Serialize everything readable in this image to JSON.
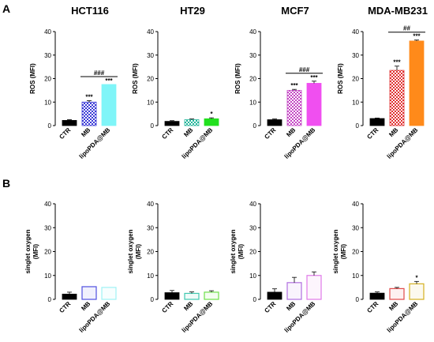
{
  "figure": {
    "panel_a_label": "A",
    "panel_b_label": "B",
    "categories": [
      "CTR",
      "MB",
      "lipoPDA@MB"
    ]
  },
  "chart_data": [
    {
      "type": "bar",
      "panel": "A",
      "title": "HCT116",
      "ylabel": "ROS (MFI)",
      "ylim": [
        0,
        40
      ],
      "yticks": [
        0,
        10,
        20,
        30,
        40
      ],
      "categories": [
        "CTR",
        "MB",
        "lipoPDA@MB"
      ],
      "values": [
        2.2,
        10.0,
        17.5
      ],
      "errors": [
        0.3,
        0.6,
        0.0
      ],
      "colors": [
        "#000000",
        "#3a3ad6",
        "#7ff5f8"
      ],
      "patterns": [
        "solid",
        "checker",
        "solid"
      ],
      "stars": [
        "",
        "***",
        "***"
      ],
      "bracket": {
        "from": 1,
        "to": 2,
        "label": "###"
      }
    },
    {
      "type": "bar",
      "panel": "A",
      "title": "HT29",
      "ylabel": "ROS (MFI)",
      "ylim": [
        0,
        40
      ],
      "yticks": [
        0,
        10,
        20,
        30,
        40
      ],
      "categories": [
        "CTR",
        "MB",
        "lipoPDA@MB"
      ],
      "values": [
        1.8,
        2.5,
        2.9
      ],
      "errors": [
        0.3,
        0.3,
        0.4
      ],
      "colors": [
        "#000000",
        "#23b59a",
        "#22e01e"
      ],
      "patterns": [
        "solid",
        "checker",
        "solid"
      ],
      "stars": [
        "",
        "",
        "*"
      ],
      "bracket": null
    },
    {
      "type": "bar",
      "panel": "A",
      "title": "MCF7",
      "ylabel": "ROS (MFI)",
      "ylim": [
        0,
        40
      ],
      "yticks": [
        0,
        10,
        20,
        30,
        40
      ],
      "categories": [
        "CTR",
        "MB",
        "lipoPDA@MB"
      ],
      "values": [
        2.5,
        15.0,
        18.0
      ],
      "errors": [
        0.3,
        0.4,
        0.9
      ],
      "colors": [
        "#000000",
        "#c447c4",
        "#f04ff0"
      ],
      "patterns": [
        "solid",
        "checker",
        "solid"
      ],
      "stars": [
        "",
        "***",
        "***"
      ],
      "bracket": {
        "from": 1,
        "to": 2,
        "label": "###"
      }
    },
    {
      "type": "bar",
      "panel": "A",
      "title": "MDA-MB231",
      "ylabel": "ROS (MFI)",
      "ylim": [
        0,
        40
      ],
      "yticks": [
        0,
        10,
        20,
        30,
        40
      ],
      "categories": [
        "CTR",
        "MB",
        "lipoPDA@MB"
      ],
      "values": [
        3.0,
        23.5,
        36.0
      ],
      "errors": [
        0.2,
        1.8,
        0.4
      ],
      "colors": [
        "#000000",
        "#e03030",
        "#ff8a1a"
      ],
      "patterns": [
        "solid",
        "checker",
        "solid"
      ],
      "stars": [
        "",
        "***",
        "***"
      ],
      "bracket": {
        "from": 1,
        "to": 2,
        "label": "##"
      }
    },
    {
      "type": "bar",
      "panel": "B",
      "title": "",
      "ylabel": "singlet oxygen (MFI)",
      "ylim": [
        0,
        40
      ],
      "yticks": [
        0,
        10,
        20,
        30,
        40
      ],
      "categories": [
        "CTR",
        "MB",
        "lipoPDA@MB"
      ],
      "values": [
        2.2,
        5.3,
        5.0
      ],
      "errors": [
        0.8,
        0.0,
        0.0
      ],
      "colors": [
        "#000000",
        "#5050e0",
        "#9ff2f5"
      ],
      "patterns": [
        "solid",
        "outline",
        "outline"
      ],
      "stars": [
        "",
        "",
        ""
      ],
      "bracket": null
    },
    {
      "type": "bar",
      "panel": "B",
      "title": "",
      "ylabel": "singlet oxygen (MFI)",
      "ylim": [
        0,
        40
      ],
      "yticks": [
        0,
        10,
        20,
        30,
        40
      ],
      "categories": [
        "CTR",
        "MB",
        "lipoPDA@MB"
      ],
      "values": [
        2.8,
        2.5,
        3.0
      ],
      "errors": [
        0.9,
        0.6,
        0.6
      ],
      "colors": [
        "#000000",
        "#40c8b0",
        "#6ee04a"
      ],
      "patterns": [
        "solid",
        "outline",
        "outline"
      ],
      "stars": [
        "",
        "",
        ""
      ],
      "bracket": null
    },
    {
      "type": "bar",
      "panel": "B",
      "title": "",
      "ylabel": "singlet oxygen (MFI)",
      "ylim": [
        0,
        40
      ],
      "yticks": [
        0,
        10,
        20,
        30,
        40
      ],
      "categories": [
        "CTR",
        "MB",
        "lipoPDA@MB"
      ],
      "values": [
        3.0,
        7.0,
        10.0
      ],
      "errors": [
        1.4,
        2.2,
        1.5
      ],
      "colors": [
        "#000000",
        "#b070e0",
        "#e07ae8"
      ],
      "patterns": [
        "solid",
        "outline",
        "outline"
      ],
      "stars": [
        "",
        "",
        ""
      ],
      "bracket": null
    },
    {
      "type": "bar",
      "panel": "B",
      "title": "",
      "ylabel": "singlet oxygen (MFI)",
      "ylim": [
        0,
        40
      ],
      "yticks": [
        0,
        10,
        20,
        30,
        40
      ],
      "categories": [
        "CTR",
        "MB",
        "lipoPDA@MB"
      ],
      "values": [
        2.6,
        4.5,
        6.5
      ],
      "errors": [
        0.5,
        0.5,
        1.0
      ],
      "colors": [
        "#000000",
        "#e04a4a",
        "#d4b020"
      ],
      "patterns": [
        "solid",
        "outline",
        "outline"
      ],
      "stars": [
        "",
        "",
        "*"
      ],
      "bracket": null
    }
  ]
}
